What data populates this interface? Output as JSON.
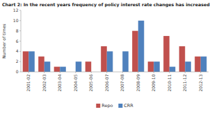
{
  "chart_data": {
    "type": "bar",
    "title": "Chart 2: In the recent years frequency of policy interest rate changes has increased",
    "categories": [
      "2001-02",
      "2002-03",
      "2003-04",
      "2004-05",
      "2005-06",
      "2006-07",
      "2007-08",
      "2008-09",
      "2009-10",
      "2010-11",
      "2011-12",
      "2012-13"
    ],
    "series": [
      {
        "name": "Repo",
        "color": "#c0504d",
        "values": [
          4,
          3,
          1,
          0,
          2,
          5,
          0,
          8,
          2,
          7,
          5,
          3
        ]
      },
      {
        "name": "CRR",
        "color": "#4f81bd",
        "values": [
          4,
          2,
          1,
          2,
          0,
          4,
          4,
          10,
          2,
          1,
          2,
          3
        ]
      }
    ],
    "ylabel": "Number of times",
    "ylim": [
      0,
      12
    ],
    "yticks": [
      0,
      2,
      4,
      6,
      8,
      10,
      12
    ],
    "grid": false,
    "legend": "bottom"
  }
}
